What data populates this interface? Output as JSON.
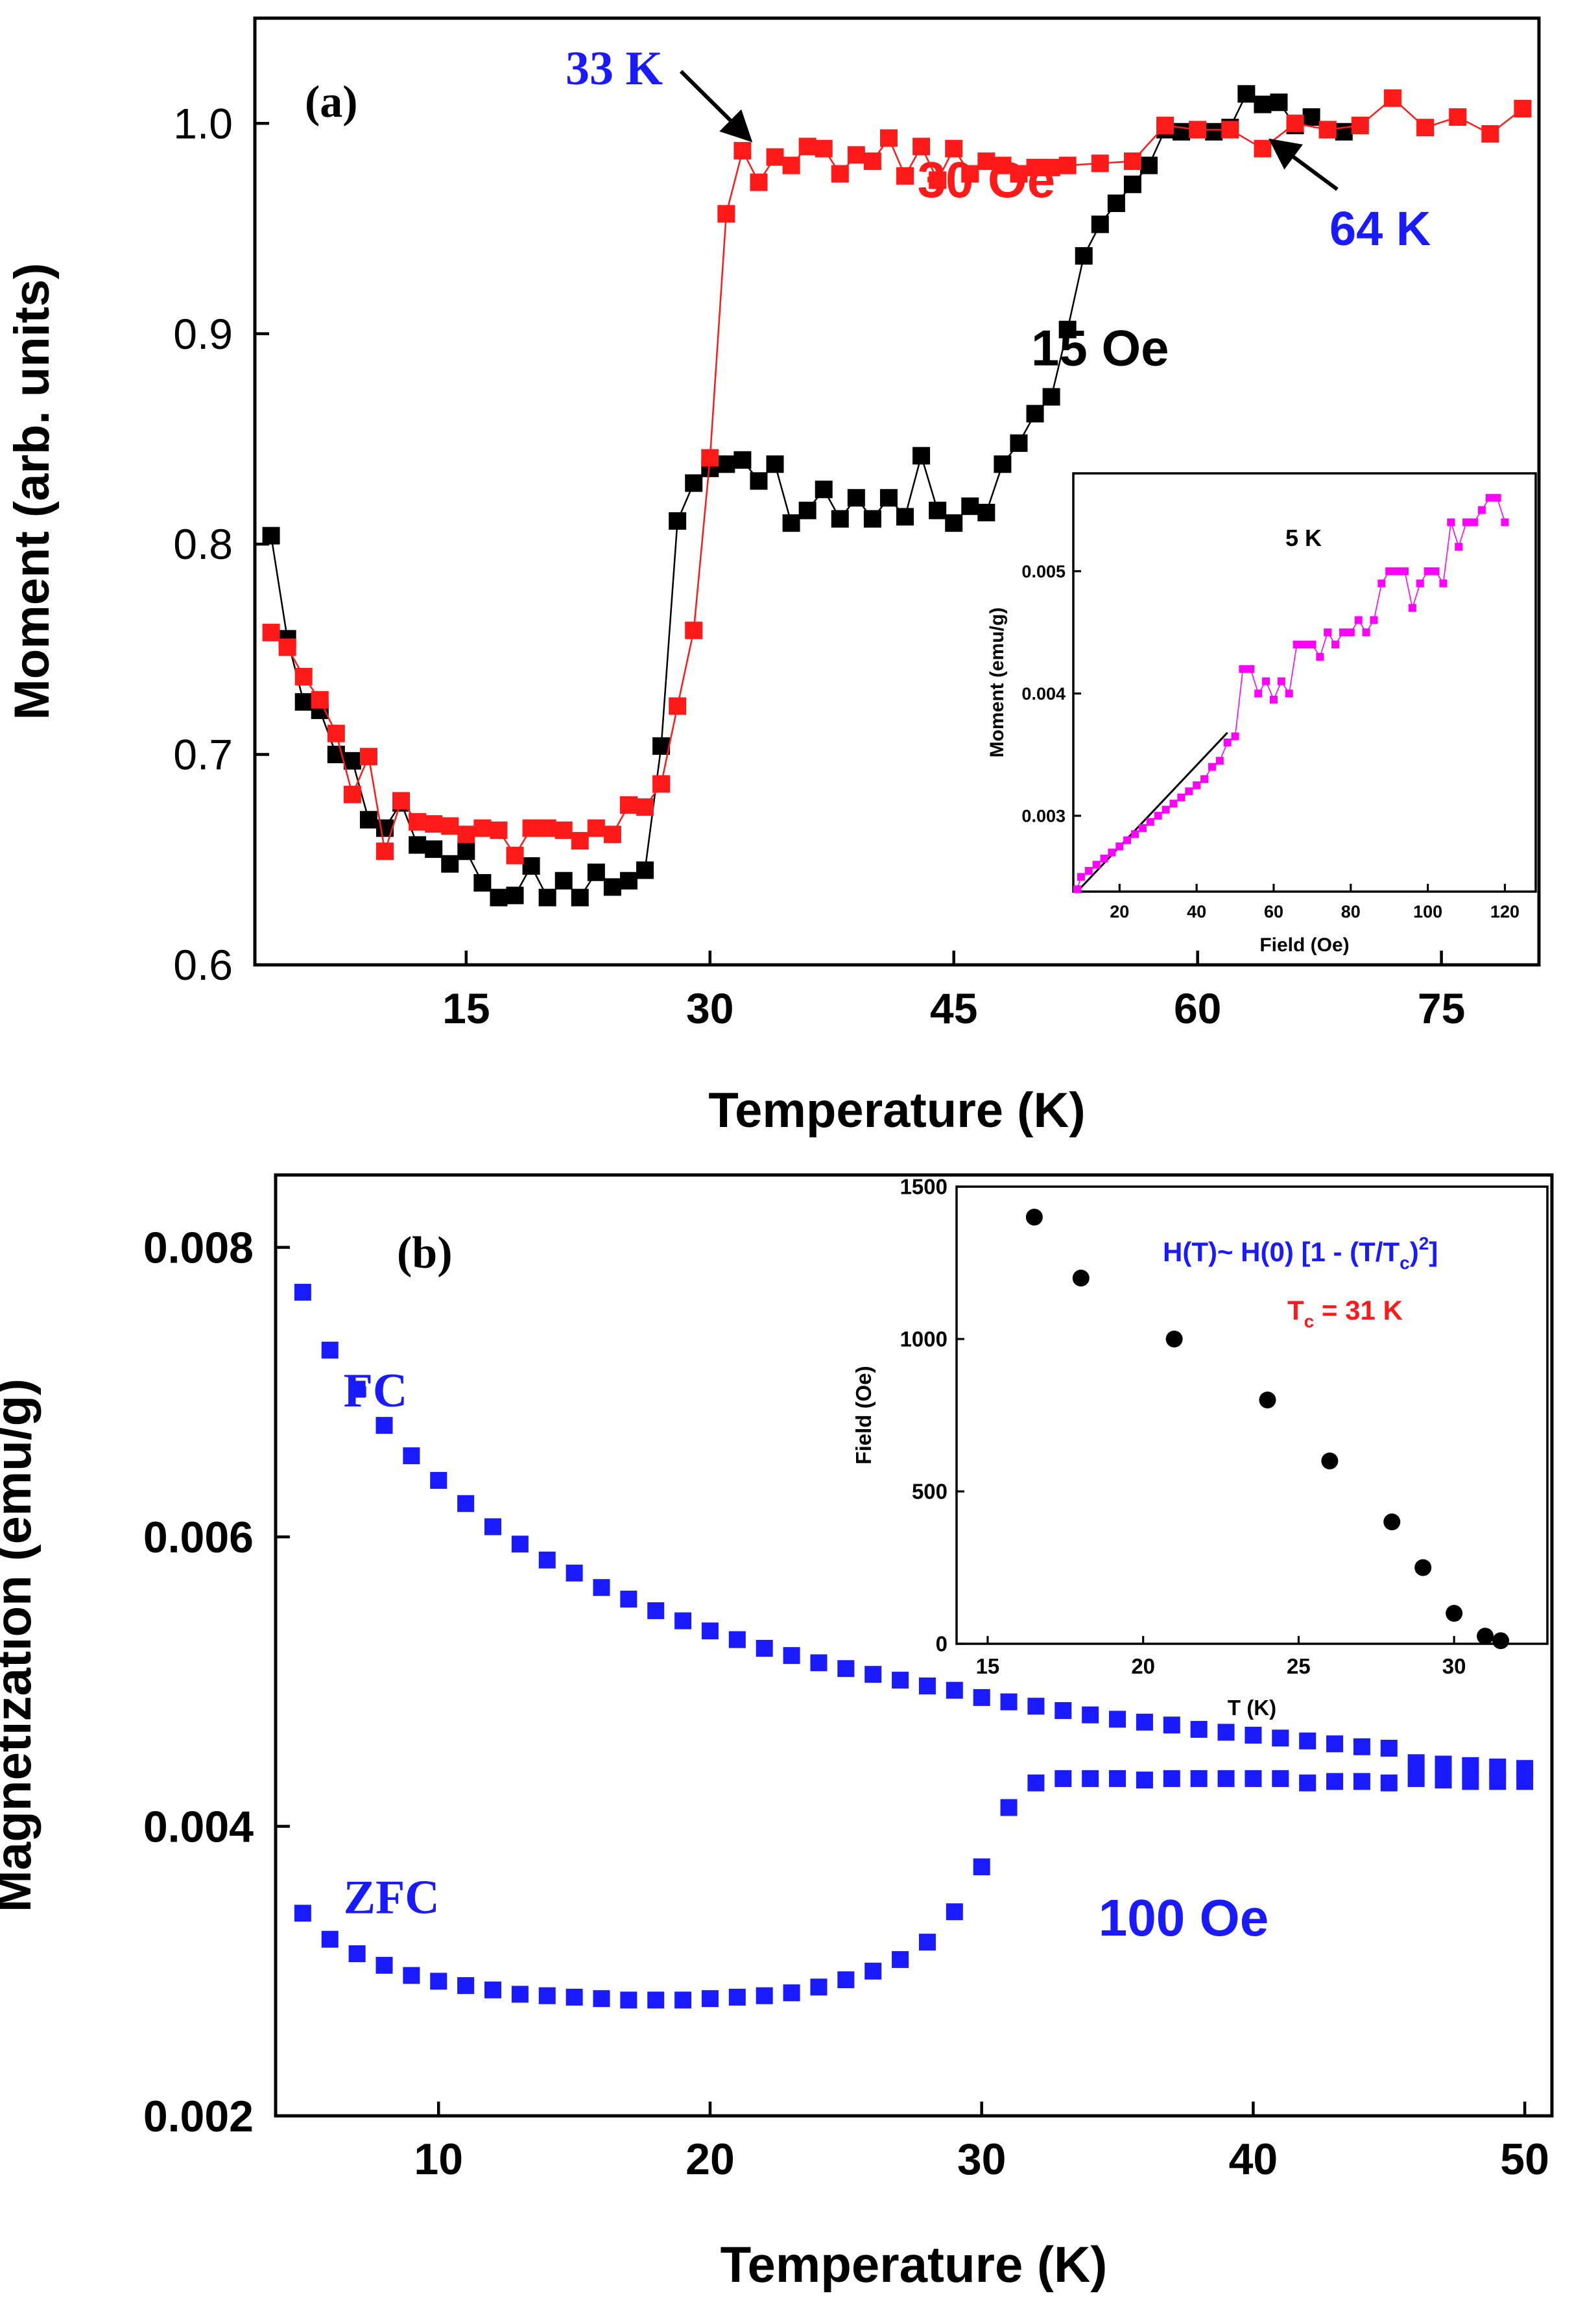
{
  "chart_data": [
    {
      "panel": "(a)",
      "type": "scatter",
      "xlabel": "Temperature (K)",
      "ylabel": "Moment (arb. units)",
      "xlim": [
        2,
        81
      ],
      "ylim": [
        0.6,
        1.05
      ],
      "xticks": [
        15,
        30,
        45,
        60,
        75
      ],
      "xtick_labels": [
        "15",
        "30",
        "45",
        "60",
        "75"
      ],
      "yticks": [
        0.6,
        0.7,
        0.8,
        0.9,
        1.0
      ],
      "ytick_labels": [
        "0.6",
        "0.7",
        "0.8",
        "0.9",
        "1.0"
      ],
      "annotations": [
        {
          "text": "33 K",
          "color": "#1a1aff",
          "x": 33,
          "y": 0.988
        },
        {
          "text": "64 K",
          "color": "#1a1aff",
          "x": 64,
          "y": 0.996
        }
      ],
      "series": [
        {
          "name": "30 Oe",
          "color": "#ff1a1a",
          "x": [
            3,
            4,
            5,
            6,
            7,
            8,
            9,
            10,
            11,
            12,
            13,
            14,
            15,
            16,
            17,
            18,
            19,
            20,
            21,
            22,
            23,
            24,
            25,
            26,
            27,
            28,
            29,
            30,
            31,
            32,
            33,
            34,
            35,
            36,
            37,
            38,
            39,
            40,
            41,
            42,
            43,
            44,
            45,
            46,
            47,
            48,
            49,
            50,
            51,
            52,
            54,
            56,
            58,
            60,
            62,
            64,
            66,
            68,
            70,
            72,
            74,
            76,
            78,
            80
          ],
          "values": [
            0.758,
            0.751,
            0.737,
            0.726,
            0.71,
            0.681,
            0.699,
            0.654,
            0.678,
            0.668,
            0.667,
            0.666,
            0.662,
            0.665,
            0.664,
            0.652,
            0.665,
            0.665,
            0.664,
            0.659,
            0.665,
            0.662,
            0.676,
            0.675,
            0.686,
            0.723,
            0.759,
            0.841,
            0.957,
            0.987,
            0.972,
            0.984,
            0.98,
            0.989,
            0.988,
            0.976,
            0.985,
            0.982,
            0.993,
            0.975,
            0.989,
            0.973,
            0.988,
            0.976,
            0.982,
            0.98,
            0.976,
            0.979,
            0.979,
            0.98,
            0.981,
            0.982,
            0.999,
            0.997,
            0.997,
            0.988,
            1.0,
            0.997,
            0.999,
            1.012,
            0.998,
            1.003,
            0.995,
            1.007
          ]
        },
        {
          "name": "15 Oe",
          "color": "#000000",
          "x": [
            3,
            4,
            5,
            6,
            7,
            8,
            9,
            10,
            11,
            12,
            13,
            14,
            15,
            16,
            17,
            18,
            19,
            20,
            21,
            22,
            23,
            24,
            25,
            26,
            27,
            28,
            29,
            30,
            31,
            32,
            33,
            34,
            35,
            36,
            37,
            38,
            39,
            40,
            41,
            42,
            43,
            44,
            45,
            46,
            47,
            48,
            49,
            50,
            51,
            52,
            53,
            54,
            55,
            56,
            57,
            58,
            59,
            60,
            61,
            62,
            63,
            64,
            65,
            66,
            67,
            68,
            69
          ],
          "values": [
            0.804,
            0.755,
            0.725,
            0.721,
            0.7,
            0.697,
            0.669,
            0.665,
            0.677,
            0.657,
            0.655,
            0.648,
            0.654,
            0.639,
            0.632,
            0.633,
            0.647,
            0.632,
            0.64,
            0.632,
            0.644,
            0.637,
            0.64,
            0.645,
            0.704,
            0.811,
            0.829,
            0.836,
            0.838,
            0.84,
            0.83,
            0.838,
            0.81,
            0.816,
            0.826,
            0.812,
            0.822,
            0.812,
            0.822,
            0.813,
            0.842,
            0.816,
            0.81,
            0.818,
            0.815,
            0.838,
            0.848,
            0.862,
            0.87,
            0.902,
            0.937,
            0.952,
            0.962,
            0.971,
            0.98,
            0.997,
            0.996,
            0.997,
            0.996,
            0.998,
            1.014,
            1.009,
            1.01,
            0.999,
            1.003,
            0.997,
            0.996
          ]
        }
      ],
      "series_labels": [
        {
          "text": "30 Oe",
          "color": "#ff1a1a",
          "x": 47,
          "y": 0.965
        },
        {
          "text": "15 Oe",
          "color": "#000000",
          "x": 54,
          "y": 0.885
        }
      ],
      "inset": {
        "title": "5 K",
        "type": "scatter",
        "xlabel": "Field (Oe)",
        "ylabel": "Moment (emu/g)",
        "xlim": [
          8,
          128
        ],
        "ylim": [
          0.00238,
          0.0058
        ],
        "xticks": [
          20,
          40,
          60,
          80,
          100,
          120
        ],
        "xtick_labels": [
          "20",
          "40",
          "60",
          "80",
          "100",
          "120"
        ],
        "yticks": [
          0.003,
          0.004,
          0.005
        ],
        "ytick_labels": [
          "0.003",
          "0.004",
          "0.005"
        ],
        "series": [
          {
            "name": "5 K",
            "color": "#ff00ff",
            "x": [
              9,
              10,
              12,
              14,
              16,
              18,
              20,
              22,
              24,
              26,
              28,
              30,
              32,
              34,
              36,
              38,
              40,
              42,
              44,
              46,
              48,
              50,
              52,
              54,
              56,
              58,
              60,
              62,
              64,
              66,
              68,
              70,
              72,
              74,
              76,
              78,
              80,
              82,
              84,
              86,
              88,
              90,
              92,
              94,
              96,
              98,
              100,
              102,
              104,
              106,
              108,
              110,
              112,
              114,
              116,
              118,
              120
            ],
            "values": [
              0.0024,
              0.0025,
              0.00255,
              0.0026,
              0.00265,
              0.0027,
              0.00275,
              0.0028,
              0.00285,
              0.0029,
              0.00295,
              0.003,
              0.00305,
              0.0031,
              0.00315,
              0.0032,
              0.00325,
              0.0033,
              0.0034,
              0.00345,
              0.0036,
              0.00365,
              0.0042,
              0.0042,
              0.004,
              0.0041,
              0.00395,
              0.0041,
              0.004,
              0.0044,
              0.0044,
              0.0044,
              0.0043,
              0.0045,
              0.0044,
              0.0045,
              0.0045,
              0.0046,
              0.0045,
              0.0046,
              0.0049,
              0.005,
              0.005,
              0.005,
              0.0047,
              0.0049,
              0.005,
              0.005,
              0.0049,
              0.0054,
              0.0052,
              0.0054,
              0.0054,
              0.0055,
              0.0056,
              0.0056,
              0.0054
            ]
          }
        ],
        "fit_line": {
          "x": [
            9,
            48
          ],
          "values": [
            0.00238,
            0.00368
          ]
        }
      }
    },
    {
      "panel": "(b)",
      "type": "scatter",
      "xlabel": "Temperature (K)",
      "ylabel": "Magnetization (emu/g)",
      "xlim": [
        4,
        51
      ],
      "ylim": [
        0.002,
        0.0085
      ],
      "xticks": [
        10,
        20,
        30,
        40,
        50
      ],
      "xtick_labels": [
        "10",
        "20",
        "30",
        "40",
        "50"
      ],
      "yticks": [
        0.002,
        0.004,
        0.006,
        0.008
      ],
      "ytick_labels": [
        "0.002",
        "0.004",
        "0.006",
        "0.008"
      ],
      "field_label": "100 Oe",
      "series": [
        {
          "name": "FC",
          "color": "#1a1aff",
          "x": [
            5,
            6,
            7,
            8,
            9,
            10,
            11,
            12,
            13,
            14,
            15,
            16,
            17,
            18,
            19,
            20,
            21,
            22,
            23,
            24,
            25,
            26,
            27,
            28,
            29,
            30,
            31,
            32,
            33,
            34,
            35,
            36,
            37,
            38,
            39,
            40,
            41,
            42,
            43,
            44,
            45,
            46,
            47,
            48,
            49,
            50
          ],
          "values": [
            0.00769,
            0.00729,
            0.00702,
            0.00677,
            0.00656,
            0.00639,
            0.00623,
            0.00607,
            0.00595,
            0.00584,
            0.00575,
            0.00565,
            0.00557,
            0.00549,
            0.00542,
            0.00535,
            0.00529,
            0.00523,
            0.00518,
            0.00513,
            0.00509,
            0.00505,
            0.00501,
            0.00497,
            0.00494,
            0.00489,
            0.00486,
            0.00483,
            0.0048,
            0.00477,
            0.00474,
            0.00472,
            0.0047,
            0.00467,
            0.00465,
            0.00463,
            0.00461,
            0.00459,
            0.00457,
            0.00455,
            0.00454,
            0.00444,
            0.00443,
            0.00442,
            0.00441,
            0.0044
          ]
        },
        {
          "name": "ZFC",
          "color": "#1a1aff",
          "x": [
            5,
            6,
            7,
            8,
            9,
            10,
            11,
            12,
            13,
            14,
            15,
            16,
            17,
            18,
            19,
            20,
            21,
            22,
            23,
            24,
            25,
            26,
            27,
            28,
            29,
            30,
            31,
            32,
            33,
            34,
            35,
            36,
            37,
            38,
            39,
            40,
            41,
            42,
            43,
            44,
            45,
            46,
            47,
            48,
            49,
            50
          ],
          "values": [
            0.0034,
            0.00322,
            0.00312,
            0.00304,
            0.00297,
            0.00293,
            0.0029,
            0.00287,
            0.00284,
            0.00283,
            0.00282,
            0.00281,
            0.0028,
            0.0028,
            0.0028,
            0.00281,
            0.00282,
            0.00283,
            0.00285,
            0.00289,
            0.00294,
            0.003,
            0.00308,
            0.0032,
            0.00341,
            0.00372,
            0.00413,
            0.0043,
            0.00433,
            0.00433,
            0.00433,
            0.00432,
            0.00433,
            0.00433,
            0.00433,
            0.00433,
            0.00433,
            0.0043,
            0.00431,
            0.00431,
            0.0043,
            0.00433,
            0.00432,
            0.00431,
            0.00431,
            0.00431
          ]
        }
      ],
      "series_labels": [
        {
          "text": "FC",
          "color": "#1a1aff",
          "x": 6.5,
          "y": 0.0069
        },
        {
          "text": "ZFC",
          "color": "#1a1aff",
          "x": 6.5,
          "y": 0.0034
        }
      ],
      "inset": {
        "type": "scatter",
        "xlabel": "T (K)",
        "ylabel": "Field (Oe)",
        "xlim": [
          14,
          33
        ],
        "ylim": [
          0,
          1500
        ],
        "xticks": [
          15,
          20,
          25,
          30
        ],
        "xtick_labels": [
          "15",
          "20",
          "25",
          "30"
        ],
        "yticks": [
          0,
          500,
          1000,
          1500
        ],
        "ytick_labels": [
          "0",
          "500",
          "1000",
          "1500"
        ],
        "equation": {
          "prefix": "H(T)~ H(0) [1 - (T/T",
          "sub": "c",
          "mid": ")",
          "sup": "2",
          "suffix": "]"
        },
        "tc_label": {
          "prefix": "T",
          "sub": "c",
          "suffix": " = 31 K"
        },
        "equation_color": "#1a1aff",
        "tc_color": "#ff1a1a",
        "series": [
          {
            "name": "H(T)",
            "color": "#000000",
            "x": [
              16.5,
              18,
              21,
              24,
              26,
              28,
              29,
              30,
              31,
              31.5
            ],
            "values": [
              1400,
              1200,
              1000,
              800,
              600,
              400,
              250,
              100,
              25,
              10
            ]
          }
        ]
      }
    }
  ]
}
